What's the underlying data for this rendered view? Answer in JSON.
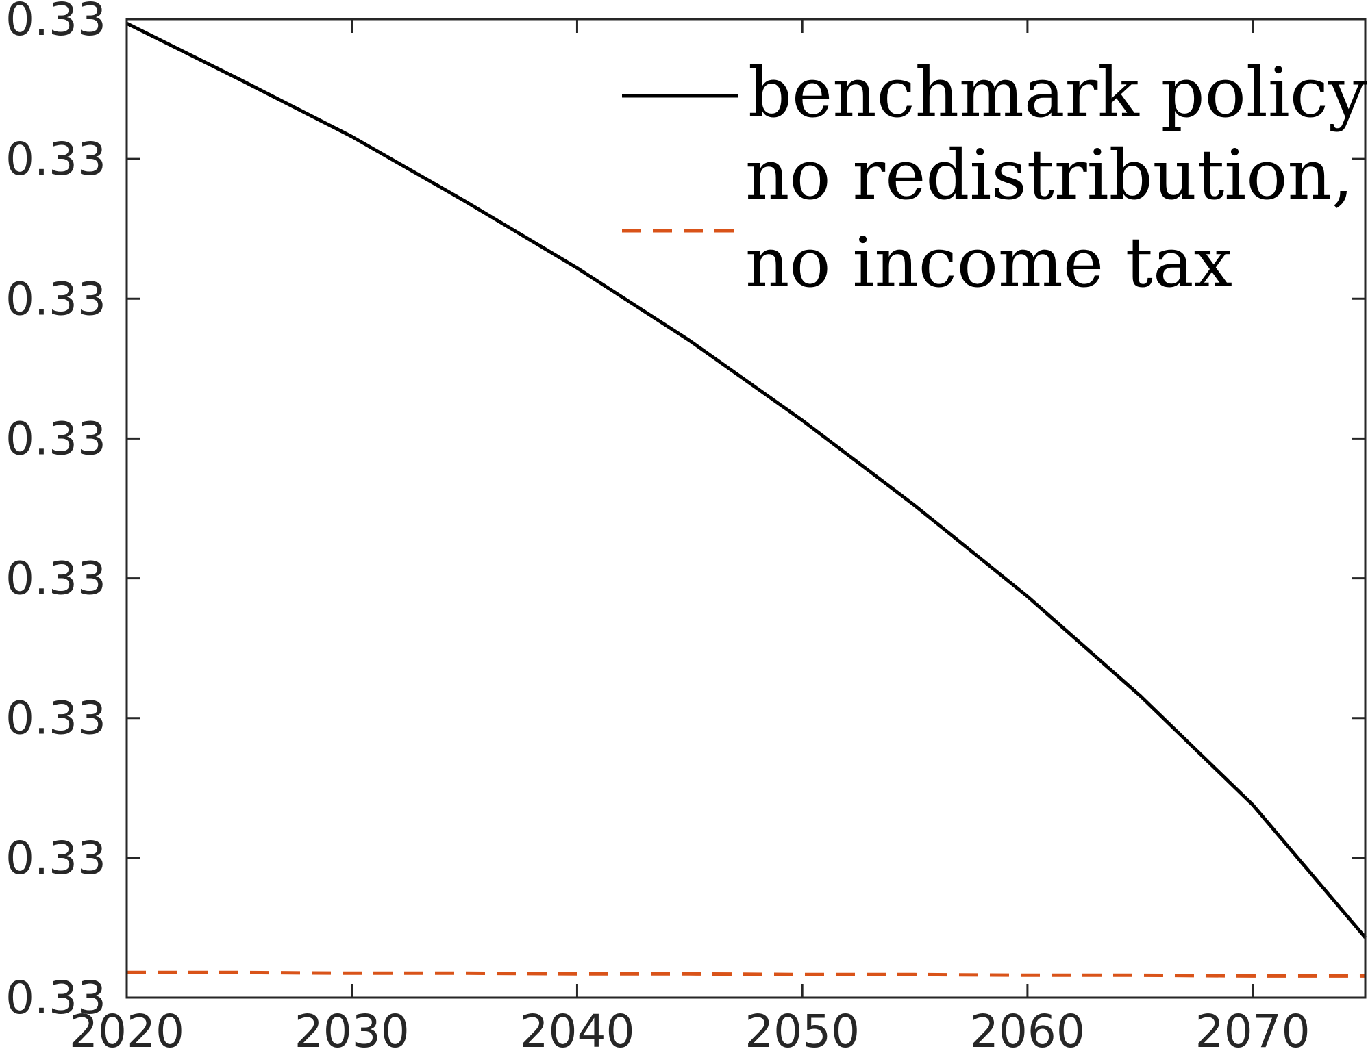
{
  "chart_data": {
    "type": "line",
    "title": "",
    "xlabel": "",
    "ylabel": "",
    "xlim": [
      2020,
      2075
    ],
    "ylim": [
      0,
      7
    ],
    "x_ticks": [
      2020,
      2030,
      2040,
      2050,
      2060,
      2070
    ],
    "x_tick_labels": [
      "2020",
      "2030",
      "2040",
      "2050",
      "2060",
      "2070"
    ],
    "y_ticks": [
      0,
      1,
      2,
      3,
      4,
      5,
      6,
      7
    ],
    "y_tick_labels": [
      "0.33",
      "0.33",
      "0.33",
      "0.33",
      "0.33",
      "0.33",
      "0.33",
      "0.33"
    ],
    "grid": false,
    "legend_position": "top-right",
    "x": [
      2020,
      2025,
      2030,
      2035,
      2040,
      2045,
      2050,
      2055,
      2060,
      2065,
      2070,
      2075
    ],
    "series": [
      {
        "name": "benchmark policy",
        "style": "solid",
        "color": "#000000",
        "values": [
          6.97,
          6.57,
          6.16,
          5.7,
          5.22,
          4.7,
          4.13,
          3.52,
          2.87,
          2.16,
          1.38,
          0.43
        ]
      },
      {
        "name": "no redistribution, no income tax",
        "legend_lines": [
          "no redistribution,",
          "no income tax"
        ],
        "style": "dashed",
        "color": "#D95319",
        "values": [
          0.18,
          0.18,
          0.175,
          0.175,
          0.17,
          0.17,
          0.165,
          0.165,
          0.16,
          0.16,
          0.155,
          0.155
        ]
      }
    ]
  }
}
